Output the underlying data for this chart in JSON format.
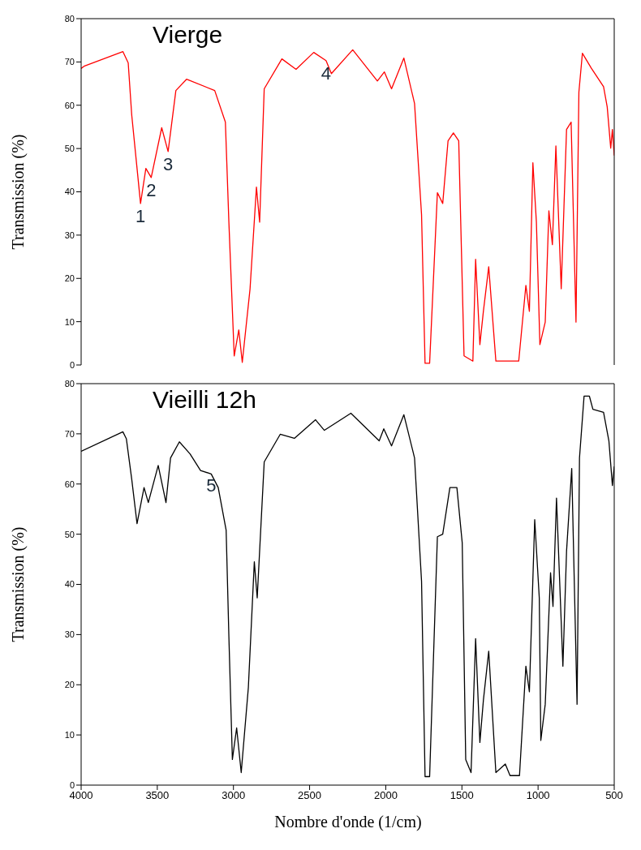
{
  "chart_data": [
    {
      "type": "line",
      "title": "Vierge",
      "ylabel": "Transmission (%)",
      "xlim": [
        4000,
        500
      ],
      "xticks": [
        4000,
        3500,
        3000,
        2500,
        2000,
        1500,
        1000,
        500
      ],
      "ylim": [
        0,
        80
      ],
      "yticks": [
        0,
        10,
        20,
        30,
        40,
        50,
        60,
        70,
        80
      ],
      "tick_labels": "y",
      "grid": false,
      "marker": "none",
      "line_style": "solid",
      "annotations": [
        {
          "text": "1",
          "x": 3610,
          "y": 37
        },
        {
          "text": "2",
          "x": 3540,
          "y": 43
        },
        {
          "text": "3",
          "x": 3429,
          "y": 49
        },
        {
          "text": "4",
          "x": 2392,
          "y": 70
        }
      ],
      "series": [
        {
          "color": "#ff0000",
          "x": [
            4000,
            3981,
            3726,
            3691,
            3668,
            3610,
            3575,
            3540,
            3471,
            3429,
            3378,
            3308,
            3123,
            3053,
            3030,
            2995,
            2965,
            2942,
            2891,
            2849,
            2828,
            2798,
            2682,
            2589,
            2473,
            2392,
            2357,
            2217,
            2055,
            2009,
            1962,
            1881,
            1811,
            1765,
            1742,
            1712,
            1661,
            1626,
            1591,
            1556,
            1521,
            1486,
            1428,
            1410,
            1382,
            1359,
            1324,
            1277,
            1127,
            1080,
            1057,
            1034,
            1011,
            988,
            953,
            929,
            906,
            883,
            848,
            813,
            783,
            751,
            732,
            709,
            651,
            570,
            546,
            523,
            512,
            500
          ],
          "values": [
            68.5,
            69,
            72.4,
            69.8,
            57.8,
            37.3,
            45.4,
            43.3,
            54.8,
            49.3,
            63.4,
            66,
            63.4,
            56.1,
            33,
            2.1,
            8.1,
            0.6,
            17.6,
            41.1,
            33,
            63.8,
            70.7,
            68.3,
            72.2,
            70.3,
            67.3,
            72.8,
            65.6,
            67.7,
            63.8,
            70.9,
            60.4,
            34.7,
            0.4,
            0.4,
            39.8,
            37.3,
            51.8,
            53.6,
            51.8,
            2.1,
            0.9,
            24.4,
            4.7,
            12.4,
            22.7,
            0.9,
            0.9,
            18.4,
            12.4,
            46.7,
            33,
            4.7,
            9.9,
            35.6,
            27.8,
            50.6,
            17.6,
            54.4,
            56.1,
            9.9,
            63,
            72,
            68.6,
            64.3,
            59.6,
            50.1,
            54.4,
            48.4
          ]
        }
      ]
    },
    {
      "type": "line",
      "title": "Vieilli 12h",
      "ylabel": "Transmission (%)",
      "xlabel": "Nombre d'onde (1/cm)",
      "xlim": [
        4000,
        500
      ],
      "xticks": [
        4000,
        3500,
        3000,
        2500,
        2000,
        1500,
        1000,
        500
      ],
      "ylim": [
        0,
        80
      ],
      "yticks": [
        0,
        10,
        20,
        30,
        40,
        50,
        60,
        70,
        80
      ],
      "grid": false,
      "marker": "none",
      "line_style": "solid",
      "annotations": [
        {
          "text": "5",
          "x": 3146,
          "y": 62
        }
      ],
      "series": [
        {
          "color": "#000000",
          "x": [
            4000,
            3726,
            3703,
            3668,
            3633,
            3587,
            3559,
            3494,
            3443,
            3413,
            3355,
            3285,
            3216,
            3146,
            3100,
            3048,
            3030,
            3007,
            2979,
            2949,
            2902,
            2863,
            2844,
            2798,
            2693,
            2600,
            2461,
            2403,
            2229,
            2043,
            2013,
            1962,
            1881,
            1811,
            1765,
            1742,
            1712,
            1661,
            1626,
            1579,
            1533,
            1498,
            1475,
            1440,
            1410,
            1382,
            1359,
            1324,
            1277,
            1215,
            1184,
            1122,
            1080,
            1057,
            1022,
            992,
            982,
            953,
            918,
            902,
            879,
            837,
            813,
            779,
            744,
            728,
            698,
            663,
            640,
            570,
            535,
            512,
            500
          ],
          "values": [
            66.5,
            70.4,
            69,
            61,
            52.1,
            59.3,
            56.3,
            63.7,
            56.3,
            65.2,
            68.4,
            66,
            62.7,
            62,
            59.3,
            50.8,
            29.6,
            5.1,
            11.4,
            2.5,
            19.5,
            44.5,
            37.3,
            64.4,
            69.9,
            69.1,
            72.8,
            70.7,
            74.1,
            68.6,
            71,
            67.6,
            73.8,
            65.2,
            40.6,
            1.7,
            1.7,
            49.5,
            50,
            59.3,
            59.3,
            48.3,
            5.1,
            2.5,
            29.2,
            8.5,
            16.9,
            26.7,
            2.5,
            4.2,
            1.9,
            1.9,
            23.7,
            18.6,
            52.9,
            37.3,
            8.9,
            16.1,
            42.3,
            35.6,
            57.2,
            23.7,
            46.6,
            63.1,
            16.1,
            65.2,
            77.5,
            77.5,
            74.9,
            74.3,
            68.6,
            59.7,
            63.5
          ]
        }
      ]
    }
  ]
}
